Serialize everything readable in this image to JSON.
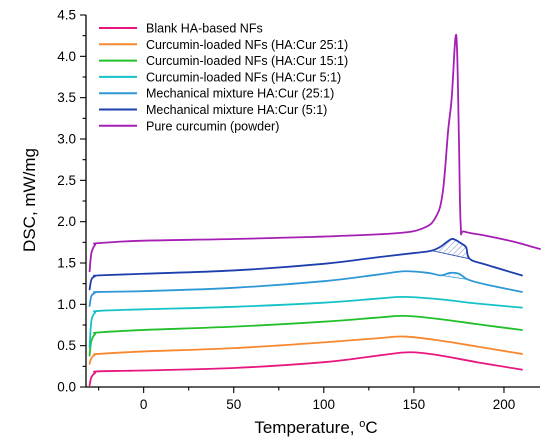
{
  "chart_data": {
    "type": "line",
    "xlabel": "Temperature, ",
    "xlabel_unit": "°C",
    "ylabel": "DSC, mW/mg",
    "xlim": [
      -32,
      220
    ],
    "ylim": [
      0,
      4.5
    ],
    "xticks": [
      0,
      50,
      100,
      150,
      200
    ],
    "yticks": [
      0.0,
      0.5,
      1.0,
      1.5,
      2.0,
      2.5,
      3.0,
      3.5,
      4.0,
      4.5
    ],
    "legend_position": "top-left",
    "grid": false,
    "series": [
      {
        "name": "Blank HA-based NFs",
        "color": "#e8177f",
        "points": [
          [
            -30,
            0.02
          ],
          [
            -29,
            0.12
          ],
          [
            -27,
            0.17
          ],
          [
            -25,
            0.19
          ],
          [
            0,
            0.2
          ],
          [
            50,
            0.23
          ],
          [
            100,
            0.3
          ],
          [
            130,
            0.38
          ],
          [
            148,
            0.42
          ],
          [
            165,
            0.38
          ],
          [
            185,
            0.3
          ],
          [
            210,
            0.21
          ]
        ]
      },
      {
        "name": "Curcumin-loaded NFs (HA:Cur 25:1)",
        "color": "#f7882f",
        "points": [
          [
            -30,
            0.28
          ],
          [
            -29,
            0.35
          ],
          [
            -27,
            0.39
          ],
          [
            -25,
            0.4
          ],
          [
            0,
            0.43
          ],
          [
            50,
            0.47
          ],
          [
            100,
            0.54
          ],
          [
            130,
            0.59
          ],
          [
            145,
            0.61
          ],
          [
            165,
            0.56
          ],
          [
            185,
            0.49
          ],
          [
            210,
            0.4
          ]
        ]
      },
      {
        "name": "Curcumin-loaded NFs (HA:Cur 15:1)",
        "color": "#22c02a",
        "points": [
          [
            -30,
            0.38
          ],
          [
            -29,
            0.56
          ],
          [
            -27,
            0.64
          ],
          [
            -25,
            0.66
          ],
          [
            0,
            0.69
          ],
          [
            50,
            0.73
          ],
          [
            100,
            0.79
          ],
          [
            130,
            0.84
          ],
          [
            145,
            0.86
          ],
          [
            165,
            0.82
          ],
          [
            185,
            0.76
          ],
          [
            210,
            0.69
          ]
        ]
      },
      {
        "name": "Curcumin-loaded NFs (HA:Cur 5:1)",
        "color": "#16c2c8",
        "points": [
          [
            -30,
            0.48
          ],
          [
            -29,
            0.8
          ],
          [
            -27,
            0.9
          ],
          [
            -25,
            0.92
          ],
          [
            0,
            0.94
          ],
          [
            50,
            0.97
          ],
          [
            100,
            1.02
          ],
          [
            130,
            1.07
          ],
          [
            145,
            1.09
          ],
          [
            165,
            1.06
          ],
          [
            185,
            1.01
          ],
          [
            210,
            0.96
          ]
        ]
      },
      {
        "name": "Mechanical mixture HA:Cur (25:1)",
        "color": "#2e98d6",
        "points": [
          [
            -30,
            0.98
          ],
          [
            -29,
            1.1
          ],
          [
            -27,
            1.14
          ],
          [
            -25,
            1.15
          ],
          [
            0,
            1.16
          ],
          [
            50,
            1.2
          ],
          [
            100,
            1.28
          ],
          [
            130,
            1.36
          ],
          [
            145,
            1.4
          ],
          [
            158,
            1.38
          ],
          [
            165,
            1.35
          ],
          [
            170,
            1.38
          ],
          [
            175,
            1.37
          ],
          [
            180,
            1.3
          ],
          [
            190,
            1.24
          ],
          [
            210,
            1.15
          ]
        ]
      },
      {
        "name": "Mechanical mixture HA:Cur (5:1)",
        "color": "#1d3fae",
        "points": [
          [
            -30,
            1.18
          ],
          [
            -29,
            1.3
          ],
          [
            -27,
            1.34
          ],
          [
            -25,
            1.35
          ],
          [
            0,
            1.37
          ],
          [
            50,
            1.41
          ],
          [
            100,
            1.49
          ],
          [
            130,
            1.57
          ],
          [
            150,
            1.62
          ],
          [
            160,
            1.65
          ],
          [
            165,
            1.7
          ],
          [
            168,
            1.75
          ],
          [
            171,
            1.79
          ],
          [
            173,
            1.78
          ],
          [
            176,
            1.74
          ],
          [
            179,
            1.69
          ],
          [
            181,
            1.55
          ],
          [
            190,
            1.48
          ],
          [
            210,
            1.35
          ]
        ]
      },
      {
        "name": "Pure curcumin (powder)",
        "color": "#a51fb5",
        "points": [
          [
            -30,
            1.4
          ],
          [
            -29,
            1.62
          ],
          [
            -27,
            1.72
          ],
          [
            -25,
            1.74
          ],
          [
            0,
            1.77
          ],
          [
            50,
            1.79
          ],
          [
            100,
            1.82
          ],
          [
            140,
            1.86
          ],
          [
            155,
            1.92
          ],
          [
            162,
            2.05
          ],
          [
            166,
            2.35
          ],
          [
            169,
            3.1
          ],
          [
            171,
            3.5
          ],
          [
            173,
            4.21
          ],
          [
            174,
            4.05
          ],
          [
            175,
            3.0
          ],
          [
            176,
            1.95
          ],
          [
            178,
            1.88
          ],
          [
            190,
            1.83
          ],
          [
            205,
            1.76
          ],
          [
            215,
            1.7
          ],
          [
            220,
            1.67
          ]
        ]
      }
    ],
    "hatched_regions": [
      {
        "series": "Mechanical mixture HA:Cur (5:1)",
        "color": "#1d3fae",
        "baseline_points": [
          [
            160,
            1.65
          ],
          [
            181,
            1.55
          ]
        ]
      },
      {
        "series": "Mechanical mixture HA:Cur (25:1)",
        "color": "#2e98d6",
        "baseline_points": [
          [
            165,
            1.35
          ],
          [
            180,
            1.3
          ]
        ]
      }
    ]
  }
}
